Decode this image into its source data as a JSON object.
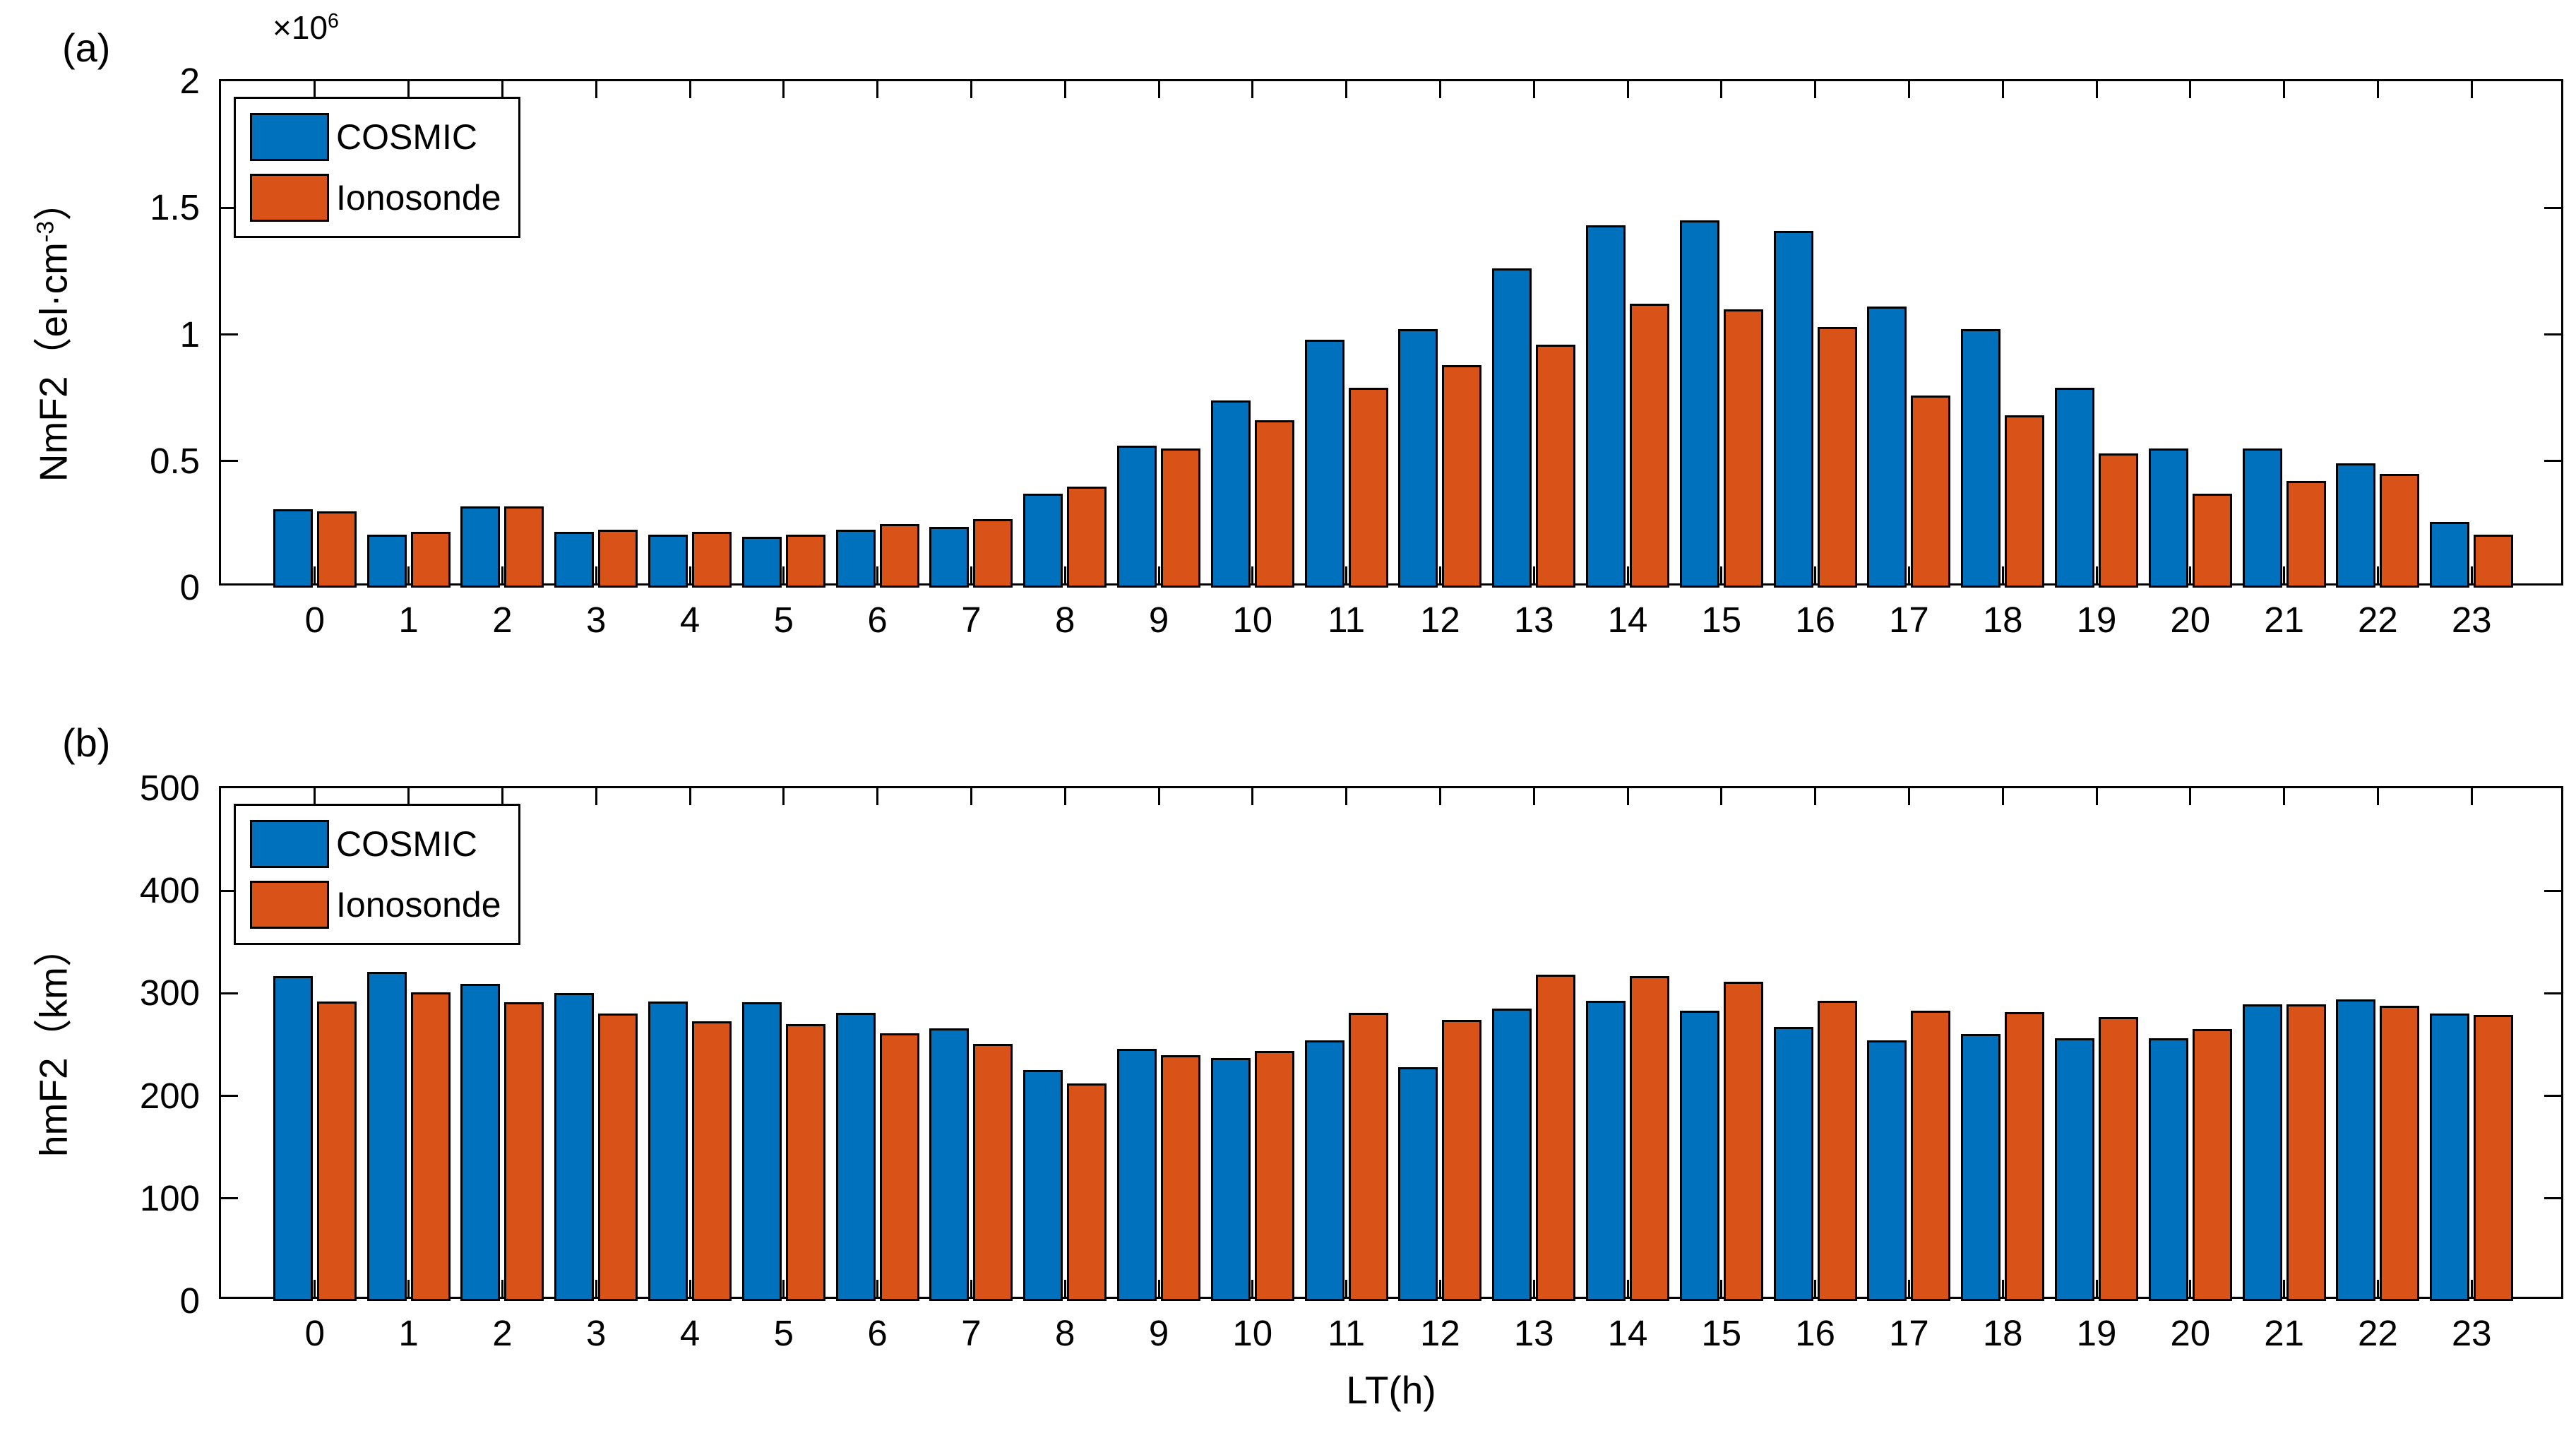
{
  "figure": {
    "background": "#FFFFFF"
  },
  "colors": {
    "cosmic": "#0072BD",
    "ionosonde": "#D95319",
    "axis": "#000000",
    "text": "#000000"
  },
  "legend": {
    "items": [
      {
        "label": "COSMIC",
        "color": "#0072BD"
      },
      {
        "label": "Ionosonde",
        "color": "#D95319"
      }
    ]
  },
  "xlabel": "LT(h)",
  "chart_data": [
    {
      "id": "a",
      "type": "bar",
      "panel_label": "(a)",
      "title": "",
      "ylabel": {
        "base": "NmF2（el·cm",
        "sup": "-3",
        "close": "）"
      },
      "y_exponent": {
        "base": "×10",
        "sup": "6"
      },
      "values_unit": "10^6 el·cm^-3",
      "categories": [
        0,
        1,
        2,
        3,
        4,
        5,
        6,
        7,
        8,
        9,
        10,
        11,
        12,
        13,
        14,
        15,
        16,
        17,
        18,
        19,
        20,
        21,
        22,
        23
      ],
      "series": [
        {
          "name": "COSMIC",
          "color": "#0072BD",
          "values": [
            0.31,
            0.21,
            0.32,
            0.22,
            0.21,
            0.2,
            0.23,
            0.24,
            0.37,
            0.56,
            0.74,
            0.98,
            1.02,
            1.26,
            1.43,
            1.45,
            1.41,
            1.11,
            1.02,
            0.79,
            0.55,
            0.55,
            0.49,
            0.26
          ]
        },
        {
          "name": "Ionosonde",
          "color": "#D95319",
          "values": [
            0.3,
            0.22,
            0.32,
            0.23,
            0.22,
            0.21,
            0.25,
            0.27,
            0.4,
            0.55,
            0.66,
            0.79,
            0.88,
            0.96,
            1.12,
            1.1,
            1.03,
            0.76,
            0.68,
            0.53,
            0.37,
            0.42,
            0.45,
            0.21
          ]
        }
      ],
      "ylim": [
        0,
        2
      ],
      "yticks": [
        0,
        0.5,
        1,
        1.5,
        2
      ],
      "ytick_labels": [
        "0",
        "0.5",
        "1",
        "1.5",
        "2"
      ],
      "xlim": [
        -1,
        24
      ],
      "legend_position": "top-left",
      "grid": false
    },
    {
      "id": "b",
      "type": "bar",
      "panel_label": "(b)",
      "title": "",
      "ylabel": {
        "base": "hmF2（km）",
        "sup": "",
        "close": ""
      },
      "y_exponent": {
        "base": "",
        "sup": ""
      },
      "values_unit": "km",
      "categories": [
        0,
        1,
        2,
        3,
        4,
        5,
        6,
        7,
        8,
        9,
        10,
        11,
        12,
        13,
        14,
        15,
        16,
        17,
        18,
        19,
        20,
        21,
        22,
        23
      ],
      "series": [
        {
          "name": "COSMIC",
          "color": "#0072BD",
          "values": [
            317,
            321,
            309,
            300,
            292,
            291,
            281,
            266,
            225,
            246,
            237,
            254,
            228,
            285,
            293,
            283,
            267,
            254,
            260,
            256,
            256,
            289,
            294,
            280
          ]
        },
        {
          "name": "Ionosonde",
          "color": "#D95319",
          "values": [
            292,
            301,
            291,
            280,
            273,
            270,
            261,
            251,
            212,
            240,
            244,
            281,
            274,
            318,
            317,
            311,
            293,
            283,
            282,
            277,
            265,
            289,
            288,
            279
          ]
        }
      ],
      "ylim": [
        0,
        500
      ],
      "yticks": [
        0,
        100,
        200,
        300,
        400,
        500
      ],
      "ytick_labels": [
        "0",
        "100",
        "200",
        "300",
        "400",
        "500"
      ],
      "xlim": [
        -1,
        24
      ],
      "xlabel": "LT(h)",
      "legend_position": "top-left",
      "grid": false
    }
  ]
}
